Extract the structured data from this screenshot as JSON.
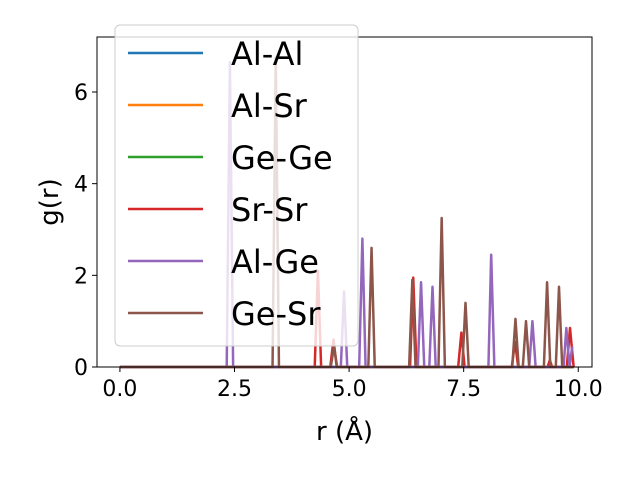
{
  "chart_data": {
    "type": "line",
    "title": "",
    "xlabel": "r (Å)",
    "ylabel": "g(r)",
    "xlim": [
      -0.5,
      10.3
    ],
    "ylim": [
      0,
      7.2
    ],
    "xticks": [
      0.0,
      2.5,
      5.0,
      7.5,
      10.0
    ],
    "xtick_labels": [
      "0.0",
      "2.5",
      "5.0",
      "7.5",
      "10.0"
    ],
    "yticks": [
      0,
      2,
      4,
      6
    ],
    "ytick_labels": [
      "0",
      "2",
      "4",
      "6"
    ],
    "grid": false,
    "legend_position": "top-left",
    "series": [
      {
        "name": "Al-Al",
        "color": "#1f77b4",
        "points": [
          [
            0.0,
            0
          ],
          [
            9.9,
            0
          ]
        ]
      },
      {
        "name": "Al-Sr",
        "color": "#ff7f0e",
        "points": [
          [
            0.0,
            0
          ],
          [
            9.9,
            0
          ]
        ]
      },
      {
        "name": "Ge-Ge",
        "color": "#2ca02c",
        "points": [
          [
            0.0,
            0
          ],
          [
            9.9,
            0
          ]
        ]
      },
      {
        "name": "Sr-Sr",
        "color": "#d62728",
        "points": [
          [
            0.0,
            0
          ],
          [
            4.25,
            0
          ],
          [
            4.32,
            2.1
          ],
          [
            4.39,
            0
          ],
          [
            4.59,
            0
          ],
          [
            4.66,
            0.6
          ],
          [
            4.73,
            0
          ],
          [
            6.33,
            0
          ],
          [
            6.4,
            1.95
          ],
          [
            6.47,
            0
          ],
          [
            7.38,
            0
          ],
          [
            7.45,
            0.75
          ],
          [
            7.52,
            0
          ],
          [
            8.55,
            0
          ],
          [
            8.62,
            0.55
          ],
          [
            8.69,
            0
          ],
          [
            9.33,
            0
          ],
          [
            9.38,
            0.15
          ],
          [
            9.43,
            0
          ],
          [
            9.75,
            0
          ],
          [
            9.82,
            0.85
          ],
          [
            9.9,
            0
          ]
        ]
      },
      {
        "name": "Al-Ge",
        "color": "#9467bd",
        "points": [
          [
            0.0,
            0
          ],
          [
            2.33,
            0
          ],
          [
            2.4,
            6.65
          ],
          [
            2.47,
            0
          ],
          [
            4.82,
            0
          ],
          [
            4.89,
            1.65
          ],
          [
            4.96,
            0
          ],
          [
            5.22,
            0
          ],
          [
            5.29,
            2.8
          ],
          [
            5.36,
            0
          ],
          [
            6.5,
            0
          ],
          [
            6.57,
            1.85
          ],
          [
            6.64,
            0
          ],
          [
            6.75,
            0
          ],
          [
            6.82,
            1.75
          ],
          [
            6.89,
            0
          ],
          [
            8.04,
            0
          ],
          [
            8.1,
            2.45
          ],
          [
            8.17,
            0
          ],
          [
            8.93,
            0
          ],
          [
            9.0,
            1.0
          ],
          [
            9.07,
            0
          ],
          [
            9.68,
            0
          ],
          [
            9.74,
            0.85
          ],
          [
            9.81,
            0.0
          ],
          [
            9.87,
            0.45
          ]
        ]
      },
      {
        "name": "Ge-Sr",
        "color": "#8c564b",
        "points": [
          [
            0.0,
            0
          ],
          [
            3.33,
            0
          ],
          [
            3.4,
            6.75
          ],
          [
            3.47,
            0
          ],
          [
            4.6,
            0
          ],
          [
            4.67,
            0.45
          ],
          [
            4.74,
            0
          ],
          [
            5.42,
            0
          ],
          [
            5.49,
            2.6
          ],
          [
            5.56,
            0
          ],
          [
            6.31,
            0
          ],
          [
            6.38,
            1.9
          ],
          [
            6.45,
            0
          ],
          [
            6.95,
            0
          ],
          [
            7.02,
            3.25
          ],
          [
            7.09,
            0
          ],
          [
            7.47,
            0
          ],
          [
            7.54,
            1.4
          ],
          [
            7.61,
            0
          ],
          [
            8.56,
            0
          ],
          [
            8.63,
            1.05
          ],
          [
            8.7,
            0
          ],
          [
            8.79,
            0
          ],
          [
            8.86,
            1.0
          ],
          [
            8.93,
            0
          ],
          [
            9.25,
            0
          ],
          [
            9.32,
            1.85
          ],
          [
            9.39,
            0
          ],
          [
            9.51,
            0
          ],
          [
            9.58,
            1.75
          ],
          [
            9.65,
            0
          ],
          [
            9.9,
            0
          ]
        ]
      }
    ]
  }
}
